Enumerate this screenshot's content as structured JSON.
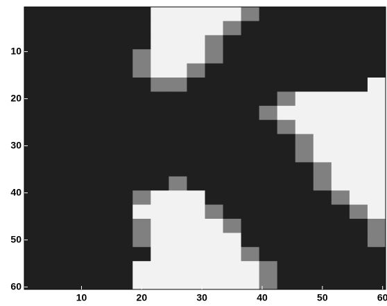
{
  "chart_data": {
    "type": "heatmap",
    "colormap": "gray",
    "clim": [
      0,
      1
    ],
    "xlim": [
      0.5,
      60.5
    ],
    "ylim": [
      0.5,
      60.5
    ],
    "y_reversed": true,
    "xticks": [
      10,
      20,
      30,
      40,
      50,
      60
    ],
    "yticks": [
      10,
      20,
      30,
      40,
      50,
      60
    ],
    "z": [
      [
        0.12,
        0.12,
        0.12,
        0.12,
        0.12,
        0.12,
        0.12,
        0.95,
        0.95,
        0.95,
        0.95,
        0.95,
        0.5,
        0.12,
        0.12,
        0.12,
        0.12,
        0.12,
        0.12,
        0.12
      ],
      [
        0.12,
        0.12,
        0.12,
        0.12,
        0.12,
        0.12,
        0.12,
        0.95,
        0.95,
        0.95,
        0.95,
        0.5,
        0.12,
        0.12,
        0.12,
        0.12,
        0.12,
        0.12,
        0.12,
        0.12
      ],
      [
        0.12,
        0.12,
        0.12,
        0.12,
        0.12,
        0.12,
        0.12,
        0.95,
        0.95,
        0.95,
        0.5,
        0.12,
        0.12,
        0.12,
        0.12,
        0.12,
        0.12,
        0.12,
        0.12,
        0.12
      ],
      [
        0.12,
        0.12,
        0.12,
        0.12,
        0.12,
        0.12,
        0.5,
        0.95,
        0.95,
        0.95,
        0.5,
        0.12,
        0.12,
        0.12,
        0.12,
        0.12,
        0.12,
        0.12,
        0.12,
        0.12
      ],
      [
        0.12,
        0.12,
        0.12,
        0.12,
        0.12,
        0.12,
        0.5,
        0.95,
        0.95,
        0.5,
        0.12,
        0.12,
        0.12,
        0.12,
        0.12,
        0.12,
        0.12,
        0.12,
        0.12,
        0.12
      ],
      [
        0.12,
        0.12,
        0.12,
        0.12,
        0.12,
        0.12,
        0.12,
        0.5,
        0.5,
        0.12,
        0.12,
        0.12,
        0.12,
        0.12,
        0.12,
        0.12,
        0.12,
        0.12,
        0.12,
        0.95
      ],
      [
        0.12,
        0.12,
        0.12,
        0.12,
        0.12,
        0.12,
        0.12,
        0.12,
        0.12,
        0.12,
        0.12,
        0.12,
        0.12,
        0.12,
        0.5,
        0.95,
        0.95,
        0.95,
        0.95,
        0.95
      ],
      [
        0.12,
        0.12,
        0.12,
        0.12,
        0.12,
        0.12,
        0.12,
        0.12,
        0.12,
        0.12,
        0.12,
        0.12,
        0.12,
        0.5,
        0.95,
        0.95,
        0.95,
        0.95,
        0.95,
        0.95
      ],
      [
        0.12,
        0.12,
        0.12,
        0.12,
        0.12,
        0.12,
        0.12,
        0.12,
        0.12,
        0.12,
        0.12,
        0.12,
        0.12,
        0.12,
        0.5,
        0.95,
        0.95,
        0.95,
        0.95,
        0.95
      ],
      [
        0.12,
        0.12,
        0.12,
        0.12,
        0.12,
        0.12,
        0.12,
        0.12,
        0.12,
        0.12,
        0.12,
        0.12,
        0.12,
        0.12,
        0.12,
        0.5,
        0.95,
        0.95,
        0.95,
        0.95
      ],
      [
        0.12,
        0.12,
        0.12,
        0.12,
        0.12,
        0.12,
        0.12,
        0.12,
        0.12,
        0.12,
        0.12,
        0.12,
        0.12,
        0.12,
        0.12,
        0.5,
        0.95,
        0.95,
        0.95,
        0.95
      ],
      [
        0.12,
        0.12,
        0.12,
        0.12,
        0.12,
        0.12,
        0.12,
        0.12,
        0.12,
        0.12,
        0.12,
        0.12,
        0.12,
        0.12,
        0.12,
        0.12,
        0.5,
        0.95,
        0.95,
        0.95
      ],
      [
        0.12,
        0.12,
        0.12,
        0.12,
        0.12,
        0.12,
        0.12,
        0.12,
        0.5,
        0.12,
        0.12,
        0.12,
        0.12,
        0.12,
        0.12,
        0.12,
        0.5,
        0.95,
        0.95,
        0.95
      ],
      [
        0.12,
        0.12,
        0.12,
        0.12,
        0.12,
        0.12,
        0.5,
        0.95,
        0.95,
        0.95,
        0.12,
        0.12,
        0.12,
        0.12,
        0.12,
        0.12,
        0.12,
        0.5,
        0.95,
        0.95
      ],
      [
        0.12,
        0.12,
        0.12,
        0.12,
        0.12,
        0.12,
        0.95,
        0.95,
        0.95,
        0.95,
        0.5,
        0.12,
        0.12,
        0.12,
        0.12,
        0.12,
        0.12,
        0.12,
        0.5,
        0.95
      ],
      [
        0.12,
        0.12,
        0.12,
        0.12,
        0.12,
        0.12,
        0.5,
        0.95,
        0.95,
        0.95,
        0.95,
        0.5,
        0.12,
        0.12,
        0.12,
        0.12,
        0.12,
        0.12,
        0.12,
        0.5
      ],
      [
        0.12,
        0.12,
        0.12,
        0.12,
        0.12,
        0.12,
        0.5,
        0.95,
        0.95,
        0.95,
        0.95,
        0.95,
        0.12,
        0.12,
        0.12,
        0.12,
        0.12,
        0.12,
        0.12,
        0.5
      ],
      [
        0.12,
        0.12,
        0.12,
        0.12,
        0.12,
        0.12,
        0.12,
        0.95,
        0.95,
        0.95,
        0.95,
        0.95,
        0.5,
        0.12,
        0.12,
        0.12,
        0.12,
        0.12,
        0.12,
        0.12
      ],
      [
        0.12,
        0.12,
        0.12,
        0.12,
        0.12,
        0.12,
        0.95,
        0.95,
        0.95,
        0.95,
        0.95,
        0.95,
        0.95,
        0.5,
        0.12,
        0.12,
        0.12,
        0.12,
        0.12,
        0.12
      ],
      [
        0.12,
        0.12,
        0.12,
        0.12,
        0.12,
        0.12,
        0.95,
        0.95,
        0.95,
        0.95,
        0.95,
        0.95,
        0.95,
        0.5,
        0.12,
        0.12,
        0.12,
        0.12,
        0.12,
        0.12
      ]
    ]
  }
}
